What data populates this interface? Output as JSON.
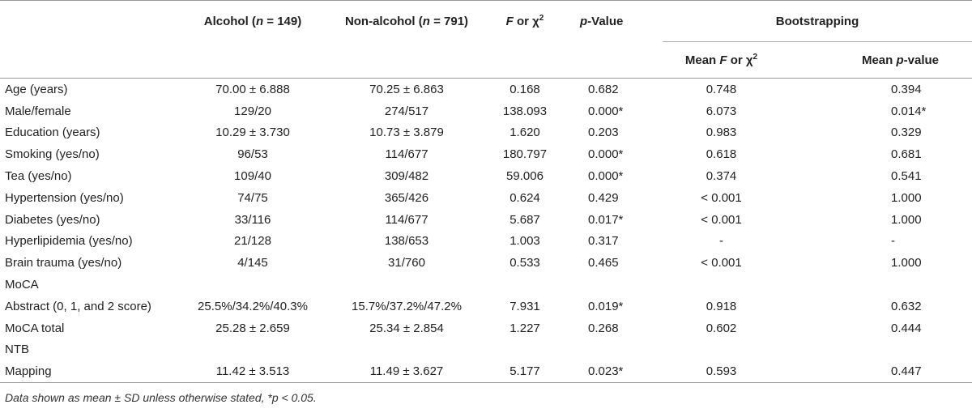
{
  "header": {
    "col_alcohol": "Alcohol (n = 149)",
    "col_alcohol_a": "Alcohol (",
    "col_alcohol_n": "n",
    "col_alcohol_b": " = 149)",
    "col_nonalcohol_a": "Non-alcohol (",
    "col_nonalcohol_n": "n",
    "col_nonalcohol_b": " = 791)",
    "col_f_italic": "F",
    "col_f_rest": " or χ",
    "col_f_sup": "2",
    "col_p_italic": "p",
    "col_p_rest": "-Value",
    "bootstrapping": "Bootstrapping",
    "mean_f_a": "Mean ",
    "mean_f_italic": "F",
    "mean_f_rest": " or χ",
    "mean_f_sup": "2",
    "mean_p_a": "Mean ",
    "mean_p_italic": "p",
    "mean_p_rest": "-value"
  },
  "rows": [
    {
      "label": "Age (years)",
      "alcohol": "70.00 ± 6.888",
      "nonalcohol": "70.25 ± 6.863",
      "f": "0.168",
      "p": "0.682",
      "mean_f": "0.748",
      "mean_p": "0.394"
    },
    {
      "label": "Male/female",
      "alcohol": "129/20",
      "nonalcohol": "274/517",
      "f": "138.093",
      "p": "0.000*",
      "mean_f": "6.073",
      "mean_p": "0.014*"
    },
    {
      "label": "Education (years)",
      "alcohol": "10.29 ± 3.730",
      "nonalcohol": "10.73 ± 3.879",
      "f": "1.620",
      "p": "0.203",
      "mean_f": "0.983",
      "mean_p": "0.329"
    },
    {
      "label": "Smoking (yes/no)",
      "alcohol": "96/53",
      "nonalcohol": "114/677",
      "f": "180.797",
      "p": "0.000*",
      "mean_f": "0.618",
      "mean_p": "0.681"
    },
    {
      "label": "Tea (yes/no)",
      "alcohol": "109/40",
      "nonalcohol": "309/482",
      "f": "59.006",
      "p": "0.000*",
      "mean_f": "0.374",
      "mean_p": "0.541"
    },
    {
      "label": "Hypertension (yes/no)",
      "alcohol": "74/75",
      "nonalcohol": "365/426",
      "f": "0.624",
      "p": "0.429",
      "mean_f": "< 0.001",
      "mean_p": "1.000"
    },
    {
      "label": "Diabetes (yes/no)",
      "alcohol": "33/116",
      "nonalcohol": "114/677",
      "f": "5.687",
      "p": "0.017*",
      "mean_f": "< 0.001",
      "mean_p": "1.000"
    },
    {
      "label": "Hyperlipidemia (yes/no)",
      "alcohol": "21/128",
      "nonalcohol": "138/653",
      "f": "1.003",
      "p": "0.317",
      "mean_f": "-",
      "mean_p": "-"
    },
    {
      "label": "Brain trauma (yes/no)",
      "alcohol": "4/145",
      "nonalcohol": "31/760",
      "f": "0.533",
      "p": "0.465",
      "mean_f": "< 0.001",
      "mean_p": "1.000"
    },
    {
      "label": "MoCA",
      "alcohol": "",
      "nonalcohol": "",
      "f": "",
      "p": "",
      "mean_f": "",
      "mean_p": ""
    },
    {
      "label": "Abstract (0, 1, and 2 score)",
      "alcohol": "25.5%/34.2%/40.3%",
      "nonalcohol": "15.7%/37.2%/47.2%",
      "f": "7.931",
      "p": "0.019*",
      "mean_f": "0.918",
      "mean_p": "0.632"
    },
    {
      "label": "MoCA total",
      "alcohol": "25.28 ± 2.659",
      "nonalcohol": "25.34 ± 2.854",
      "f": "1.227",
      "p": "0.268",
      "mean_f": "0.602",
      "mean_p": "0.444"
    },
    {
      "label": "NTB",
      "alcohol": "",
      "nonalcohol": "",
      "f": "",
      "p": "",
      "mean_f": "",
      "mean_p": ""
    },
    {
      "label": "Mapping",
      "alcohol": "11.42 ± 3.513",
      "nonalcohol": "11.49 ± 3.627",
      "f": "5.177",
      "p": "0.023*",
      "mean_f": "0.593",
      "mean_p": "0.447"
    }
  ],
  "footnote": "Data shown as mean ± SD unless otherwise stated, *p < 0.05."
}
